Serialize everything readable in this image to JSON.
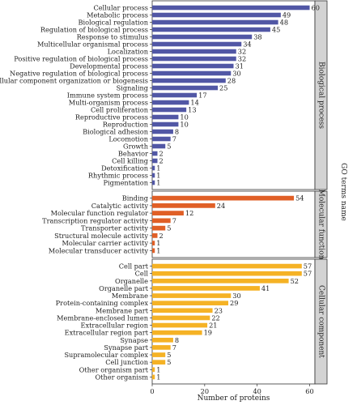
{
  "chart_data": {
    "type": "bar",
    "orientation": "horizontal",
    "xlabel": "Number of proteins",
    "ylabel": "GO terms name",
    "xlim": [
      0,
      62
    ],
    "xticks": [
      0,
      20,
      40,
      60
    ],
    "grid": false,
    "panels": [
      {
        "name": "Biological process",
        "color": "#5157a5",
        "categories": [
          "Cellular process",
          "Metabolic process",
          "Biological regulation",
          "Regulation of biological process",
          "Response to stimulus",
          "Multicellular organismal process",
          "Localization",
          "Positive regulation of biological process",
          "Developmental process",
          "Negative regulation of biological process",
          "Cellular component organization or biogenesis",
          "Signaling",
          "Immune system process",
          "Multi-organism process",
          "Cell proliferation",
          "Reproductive process",
          "Reproduction",
          "Biological adhesion",
          "Locomotion",
          "Growth",
          "Behavior",
          "Cell killing",
          "Detoxification",
          "Rhythmic process",
          "Pigmentation"
        ],
        "values": [
          60,
          49,
          48,
          45,
          38,
          34,
          32,
          32,
          31,
          30,
          28,
          25,
          17,
          14,
          13,
          10,
          10,
          8,
          7,
          5,
          2,
          2,
          1,
          1,
          1
        ]
      },
      {
        "name": "Molecular function",
        "color": "#e05f26",
        "categories": [
          "Binding",
          "Catalytic activity",
          "Molecular function regulator",
          "Transcription regulator activity",
          "Transporter activity",
          "Structural molecule activity",
          "Molecular carrier activity",
          "Molecular transducer activity"
        ],
        "values": [
          54,
          24,
          12,
          7,
          5,
          2,
          1,
          1
        ]
      },
      {
        "name": "Cellular component",
        "color": "#f5b225",
        "categories": [
          "Cell part",
          "Cell",
          "Organelle",
          "Organelle part",
          "Membrane",
          "Protein-containing complex",
          "Membrane part",
          "Membrane-enclosed lumen",
          "Extracellular region",
          "Extracellular region part",
          "Synapse",
          "Synapse part",
          "Supramolecular complex",
          "Cell junction",
          "Other organism part",
          "Other organism"
        ],
        "values": [
          57,
          57,
          52,
          41,
          30,
          29,
          23,
          22,
          21,
          19,
          8,
          7,
          5,
          5,
          1,
          1
        ]
      }
    ]
  }
}
